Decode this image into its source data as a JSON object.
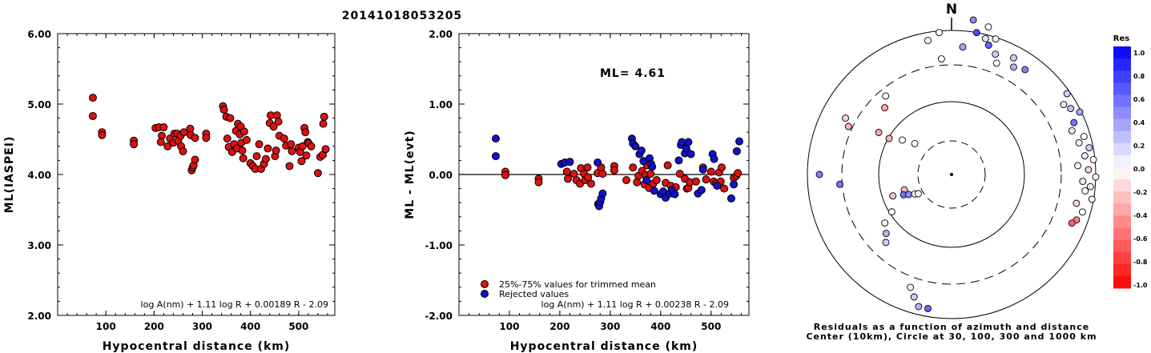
{
  "title": "20141018053205",
  "chart_data": [
    {
      "type": "scatter",
      "xlabel": "Hypocentral distance (km)",
      "ylabel": "ML(IASPEI)",
      "xlim": [
        0,
        575
      ],
      "ylim": [
        2.0,
        6.0
      ],
      "xticks": [
        "100",
        "200",
        "300",
        "400",
        "500"
      ],
      "yticks": [
        "2.00",
        "3.00",
        "4.00",
        "5.00",
        "6.00"
      ],
      "formula": "log A(nm) + 1.11 log R + 0.00189 R - 2.09",
      "series": [
        {
          "color": "#dd1111",
          "points": [
            [
              73,
              5.09
            ],
            [
              73,
              4.83
            ],
            [
              92,
              4.6
            ],
            [
              92,
              4.56
            ],
            [
              158,
              4.48
            ],
            [
              158,
              4.43
            ],
            [
              203,
              4.66
            ],
            [
              210,
              4.67
            ],
            [
              216,
              4.55
            ],
            [
              214,
              4.46
            ],
            [
              220,
              4.67
            ],
            [
              228,
              4.4
            ],
            [
              233,
              4.51
            ],
            [
              240,
              4.45
            ],
            [
              242,
              4.58
            ],
            [
              248,
              4.58
            ],
            [
              250,
              4.48
            ],
            [
              255,
              4.55
            ],
            [
              256,
              4.4
            ],
            [
              260,
              4.33
            ],
            [
              262,
              4.6
            ],
            [
              275,
              4.65
            ],
            [
              276,
              4.56
            ],
            [
              278,
              4.06
            ],
            [
              280,
              4.1
            ],
            [
              282,
              4.13
            ],
            [
              285,
              4.21
            ],
            [
              285,
              4.52
            ],
            [
              308,
              4.58
            ],
            [
              308,
              4.52
            ],
            [
              343,
              4.97
            ],
            [
              345,
              4.92
            ],
            [
              350,
              4.82
            ],
            [
              352,
              4.51
            ],
            [
              355,
              4.39
            ],
            [
              358,
              4.8
            ],
            [
              362,
              4.32
            ],
            [
              366,
              4.43
            ],
            [
              370,
              4.62
            ],
            [
              372,
              4.37
            ],
            [
              374,
              4.72
            ],
            [
              378,
              4.57
            ],
            [
              380,
              4.68
            ],
            [
              381,
              4.45
            ],
            [
              383,
              4.34
            ],
            [
              385,
              4.23
            ],
            [
              387,
              4.61
            ],
            [
              392,
              4.49
            ],
            [
              400,
              4.16
            ],
            [
              405,
              4.12
            ],
            [
              410,
              4.08
            ],
            [
              413,
              4.26
            ],
            [
              418,
              4.43
            ],
            [
              422,
              4.08
            ],
            [
              428,
              4.15
            ],
            [
              432,
              4.22
            ],
            [
              436,
              4.37
            ],
            [
              440,
              4.73
            ],
            [
              442,
              4.84
            ],
            [
              448,
              4.68
            ],
            [
              451,
              4.26
            ],
            [
              453,
              4.34
            ],
            [
              455,
              4.84
            ],
            [
              458,
              4.75
            ],
            [
              460,
              4.55
            ],
            [
              470,
              4.51
            ],
            [
              474,
              4.41
            ],
            [
              481,
              4.12
            ],
            [
              484,
              4.43
            ],
            [
              486,
              4.33
            ],
            [
              500,
              4.38
            ],
            [
              503,
              4.32
            ],
            [
              506,
              4.19
            ],
            [
              508,
              4.4
            ],
            [
              512,
              4.66
            ],
            [
              514,
              4.6
            ],
            [
              516,
              4.27
            ],
            [
              519,
              4.46
            ],
            [
              521,
              4.44
            ],
            [
              526,
              4.4
            ],
            [
              540,
              4.02
            ],
            [
              545,
              4.25
            ],
            [
              550,
              4.28
            ],
            [
              551,
              4.72
            ],
            [
              553,
              4.82
            ],
            [
              556,
              4.36
            ]
          ]
        }
      ]
    },
    {
      "type": "scatter",
      "xlabel": "Hypocentral distance (km)",
      "ylabel": "ML - ML(evt)",
      "xlim": [
        0,
        575
      ],
      "ylim": [
        -2.0,
        2.0
      ],
      "xticks": [
        "100",
        "200",
        "300",
        "400",
        "500"
      ],
      "yticks": [
        "-2.00",
        "-1.00",
        "0.00",
        "1.00",
        "2.00"
      ],
      "annotation": "ML= 4.61",
      "hline": 0.0,
      "formula": "log A(nm) + 1.11 log R + 0.00238 R - 2.09",
      "legend": [
        {
          "label": "25%-75% values for trimmed mean",
          "color": "#dd1111"
        },
        {
          "label": "Rejected values",
          "color": "#1111cc"
        }
      ],
      "series": [
        {
          "name": "25%-75% values for trimmed mean",
          "color": "#dd1111",
          "points": [
            [
              92,
              0.04
            ],
            [
              92,
              -0.01
            ],
            [
              158,
              -0.06
            ],
            [
              158,
              -0.11
            ],
            [
              214,
              0.04
            ],
            [
              216,
              -0.06
            ],
            [
              228,
              0.01
            ],
            [
              233,
              -0.08
            ],
            [
              240,
              -0.13
            ],
            [
              242,
              0.09
            ],
            [
              248,
              0.01
            ],
            [
              250,
              -0.08
            ],
            [
              255,
              0.1
            ],
            [
              256,
              -0.04
            ],
            [
              262,
              -0.13
            ],
            [
              275,
              0.02
            ],
            [
              282,
              0.1
            ],
            [
              285,
              0.01
            ],
            [
              308,
              0.12
            ],
            [
              308,
              0.06
            ],
            [
              332,
              -0.08
            ],
            [
              345,
              0.1
            ],
            [
              353,
              -0.11
            ],
            [
              356,
              -0.02
            ],
            [
              363,
              0.05
            ],
            [
              368,
              -0.14
            ],
            [
              370,
              -0.01
            ],
            [
              373,
              0.13
            ],
            [
              377,
              -0.19
            ],
            [
              380,
              0.01
            ],
            [
              385,
              -0.13
            ],
            [
              392,
              -0.08
            ],
            [
              410,
              -0.12
            ],
            [
              414,
              0.13
            ],
            [
              420,
              -0.16
            ],
            [
              430,
              -0.18
            ],
            [
              438,
              0.01
            ],
            [
              448,
              -0.06
            ],
            [
              452,
              -0.2
            ],
            [
              455,
              -0.19
            ],
            [
              458,
              -0.11
            ],
            [
              470,
              -0.1
            ],
            [
              484,
              0.1
            ],
            [
              490,
              -0.07
            ],
            [
              500,
              0.04
            ],
            [
              505,
              -0.1
            ],
            [
              510,
              -0.13
            ],
            [
              516,
              0.03
            ],
            [
              519,
              -0.1
            ],
            [
              521,
              0.1
            ],
            [
              526,
              -0.2
            ],
            [
              545,
              -0.05
            ],
            [
              550,
              -0.02
            ],
            [
              553,
              0.02
            ]
          ]
        },
        {
          "name": "Rejected values",
          "color": "#1111cc",
          "points": [
            [
              73,
              0.51
            ],
            [
              73,
              0.26
            ],
            [
              203,
              0.15
            ],
            [
              210,
              0.17
            ],
            [
              220,
              0.18
            ],
            [
              275,
              0.17
            ],
            [
              276,
              -0.42
            ],
            [
              278,
              -0.45
            ],
            [
              280,
              -0.39
            ],
            [
              282,
              -0.34
            ],
            [
              285,
              -0.27
            ],
            [
              343,
              0.51
            ],
            [
              345,
              0.44
            ],
            [
              350,
              0.4
            ],
            [
              358,
              0.29
            ],
            [
              362,
              0.34
            ],
            [
              366,
              0.19
            ],
            [
              372,
              -0.08
            ],
            [
              378,
              0.23
            ],
            [
              381,
              0.15
            ],
            [
              383,
              0.11
            ],
            [
              387,
              -0.23
            ],
            [
              400,
              -0.28
            ],
            [
              405,
              -0.24
            ],
            [
              410,
              -0.33
            ],
            [
              418,
              -0.27
            ],
            [
              422,
              -0.22
            ],
            [
              428,
              -0.28
            ],
            [
              436,
              0.2
            ],
            [
              440,
              0.42
            ],
            [
              442,
              0.46
            ],
            [
              448,
              0.3
            ],
            [
              451,
              0.37
            ],
            [
              455,
              0.46
            ],
            [
              460,
              0.29
            ],
            [
              474,
              -0.27
            ],
            [
              481,
              -0.22
            ],
            [
              484,
              0.07
            ],
            [
              503,
              0.29
            ],
            [
              506,
              0.22
            ],
            [
              512,
              -0.16
            ],
            [
              540,
              -0.34
            ],
            [
              545,
              -0.14
            ],
            [
              551,
              0.33
            ],
            [
              556,
              0.47
            ]
          ]
        }
      ]
    },
    {
      "type": "polar-scatter",
      "north_label": "N",
      "colorbar_title": "Res",
      "colorbar_ticks": [
        "1.0",
        "0.8",
        "0.6",
        "0.4",
        "0.2",
        "0.0",
        "-0.2",
        "-0.4",
        "-0.6",
        "-0.8",
        "-1.0"
      ],
      "caption_line1": "Residuals as a function of azimuth and distance",
      "caption_line2": "Center (10km), Circle at 30, 100, 300 and 1000 km",
      "points": [
        [
          8,
          195,
          0.45
        ],
        [
          10,
          180,
          0.7
        ],
        [
          5,
          160,
          0.35
        ],
        [
          14,
          175,
          0.1
        ],
        [
          14,
          190,
          0.0
        ],
        [
          18,
          178,
          0.05
        ],
        [
          16,
          168,
          0.6
        ],
        [
          22,
          150,
          0.0
        ],
        [
          20,
          160,
          0.2
        ],
        [
          28,
          165,
          0.2
        ],
        [
          30,
          155,
          0.3
        ],
        [
          35,
          160,
          0.5
        ],
        [
          -5,
          178,
          0.0
        ],
        [
          -10,
          170,
          0.0
        ],
        [
          -5,
          145,
          0.0
        ],
        [
          -40,
          128,
          0.0
        ],
        [
          -45,
          118,
          -0.35
        ],
        [
          -65,
          142,
          -0.3
        ],
        [
          -62,
          150,
          -0.2
        ],
        [
          -50,
          60,
          0.0
        ],
        [
          -55,
          75,
          0.0
        ],
        [
          -60,
          90,
          -0.3
        ],
        [
          -60,
          105,
          -0.35
        ],
        [
          -90,
          165,
          0.5
        ],
        [
          -95,
          140,
          0.55
        ],
        [
          -108,
          62,
          -0.3
        ],
        [
          -110,
          78,
          -0.25
        ],
        [
          -113,
          65,
          0.55
        ],
        [
          -115,
          59,
          0.45
        ],
        [
          -118,
          52,
          0.0
        ],
        [
          -120,
          48,
          0.0
        ],
        [
          -122,
          88,
          0.0
        ],
        [
          -126,
          103,
          -0.05
        ],
        [
          -132,
          110,
          0.3
        ],
        [
          -136,
          118,
          0.2
        ],
        [
          -160,
          150,
          -0.05
        ],
        [
          -163,
          160,
          0.2
        ],
        [
          -166,
          170,
          0.3
        ],
        [
          -170,
          170,
          0.6
        ]
      ],
      "rim_points": [
        [
          55,
          176,
          0.2
        ],
        [
          58,
          165,
          0.1
        ],
        [
          61,
          170,
          0.25
        ],
        [
          64,
          178,
          0.35
        ],
        [
          67,
          166,
          0.55
        ],
        [
          70,
          160,
          0.1
        ],
        [
          74,
          172,
          0.0
        ],
        [
          76,
          164,
          0.05
        ],
        [
          79,
          175,
          0.2
        ],
        [
          82,
          168,
          0.1
        ],
        [
          84,
          178,
          0.0
        ],
        [
          86,
          158,
          0.05
        ],
        [
          88,
          171,
          -0.2
        ],
        [
          91,
          180,
          0.0
        ],
        [
          93,
          164,
          -0.1
        ],
        [
          95,
          174,
          -0.1
        ],
        [
          97,
          168,
          0.0
        ],
        [
          100,
          178,
          0.05
        ],
        [
          103,
          160,
          -0.15
        ],
        [
          106,
          170,
          0.0
        ],
        [
          110,
          166,
          -0.5
        ],
        [
          112,
          162,
          -0.6
        ]
      ]
    }
  ]
}
